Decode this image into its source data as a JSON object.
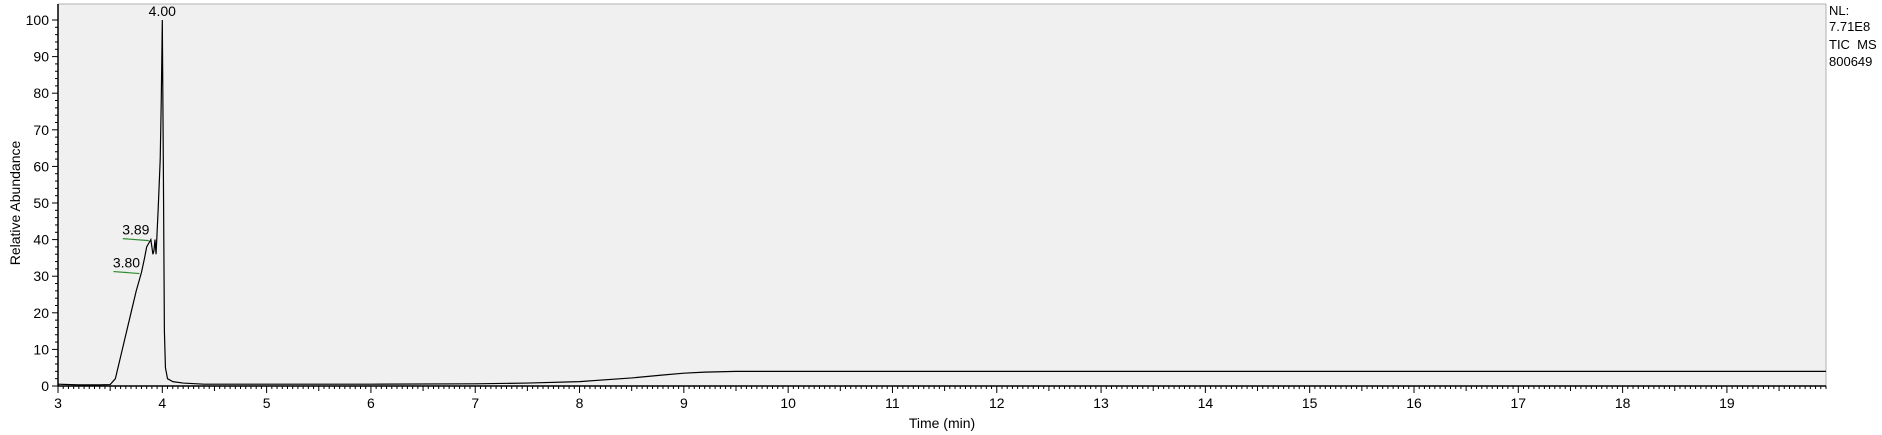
{
  "chart_data": {
    "type": "line",
    "title": "",
    "xlabel": "Time (min)",
    "ylabel": "Relative Abundance",
    "xlim": [
      3,
      19.95
    ],
    "ylim": [
      0,
      100
    ],
    "x_ticks": [
      3,
      4,
      5,
      6,
      7,
      8,
      9,
      10,
      11,
      12,
      13,
      14,
      15,
      16,
      17,
      18,
      19
    ],
    "x_tick_labels": [
      "3",
      "4",
      "5",
      "6",
      "7",
      "8",
      "9",
      "10",
      "11",
      "12",
      "13",
      "14",
      "15",
      "16",
      "17",
      "18",
      "19"
    ],
    "y_ticks": [
      0,
      10,
      20,
      30,
      40,
      50,
      60,
      70,
      80,
      90,
      100
    ],
    "y_tick_labels": [
      "0",
      "10",
      "20",
      "30",
      "40",
      "50",
      "60",
      "70",
      "80",
      "90",
      "100"
    ],
    "grid": false,
    "plot_background": "#f0f0f0",
    "line_color": "#000000",
    "marker_color": "#2e8b2e",
    "series": [
      {
        "x": [
          3.0,
          3.2,
          3.4,
          3.5,
          3.55,
          3.6,
          3.65,
          3.7,
          3.75,
          3.8,
          3.83,
          3.85,
          3.87,
          3.89,
          3.9,
          3.91,
          3.92,
          3.93,
          3.94,
          3.95,
          3.96,
          3.97,
          3.98,
          3.99,
          4.0,
          4.01,
          4.02,
          4.03,
          4.05,
          4.1,
          4.2,
          4.4,
          5.0,
          6.0,
          7.0,
          7.5,
          8.0,
          8.5,
          8.8,
          9.0,
          9.2,
          9.5,
          10.0,
          11.0,
          12.0,
          13.0,
          14.0,
          15.0,
          16.0,
          17.0,
          18.0,
          19.0,
          19.95
        ],
        "y": [
          0.5,
          0.3,
          0.3,
          0.4,
          2,
          8,
          14,
          20,
          26,
          31,
          35,
          38,
          39,
          40,
          38,
          36,
          37,
          40,
          36,
          42,
          48,
          55,
          62,
          78,
          100,
          60,
          15,
          5,
          2,
          1.2,
          0.8,
          0.5,
          0.5,
          0.5,
          0.6,
          0.8,
          1.2,
          2.2,
          3.0,
          3.5,
          3.8,
          4.0,
          4.0,
          4.0,
          4.0,
          4.0,
          4.0,
          4.0,
          4.0,
          4.0,
          4.0,
          4.0,
          4.0
        ]
      }
    ],
    "peak_annotations": [
      {
        "label": "4.00",
        "x": 4.0,
        "y": 100
      },
      {
        "label": "3.89",
        "x": 3.89,
        "y": 40
      },
      {
        "label": "3.80",
        "x": 3.8,
        "y": 31
      }
    ],
    "info_lines": [
      "NL:",
      "7.71E8",
      "TIC  MS",
      "800649"
    ]
  }
}
